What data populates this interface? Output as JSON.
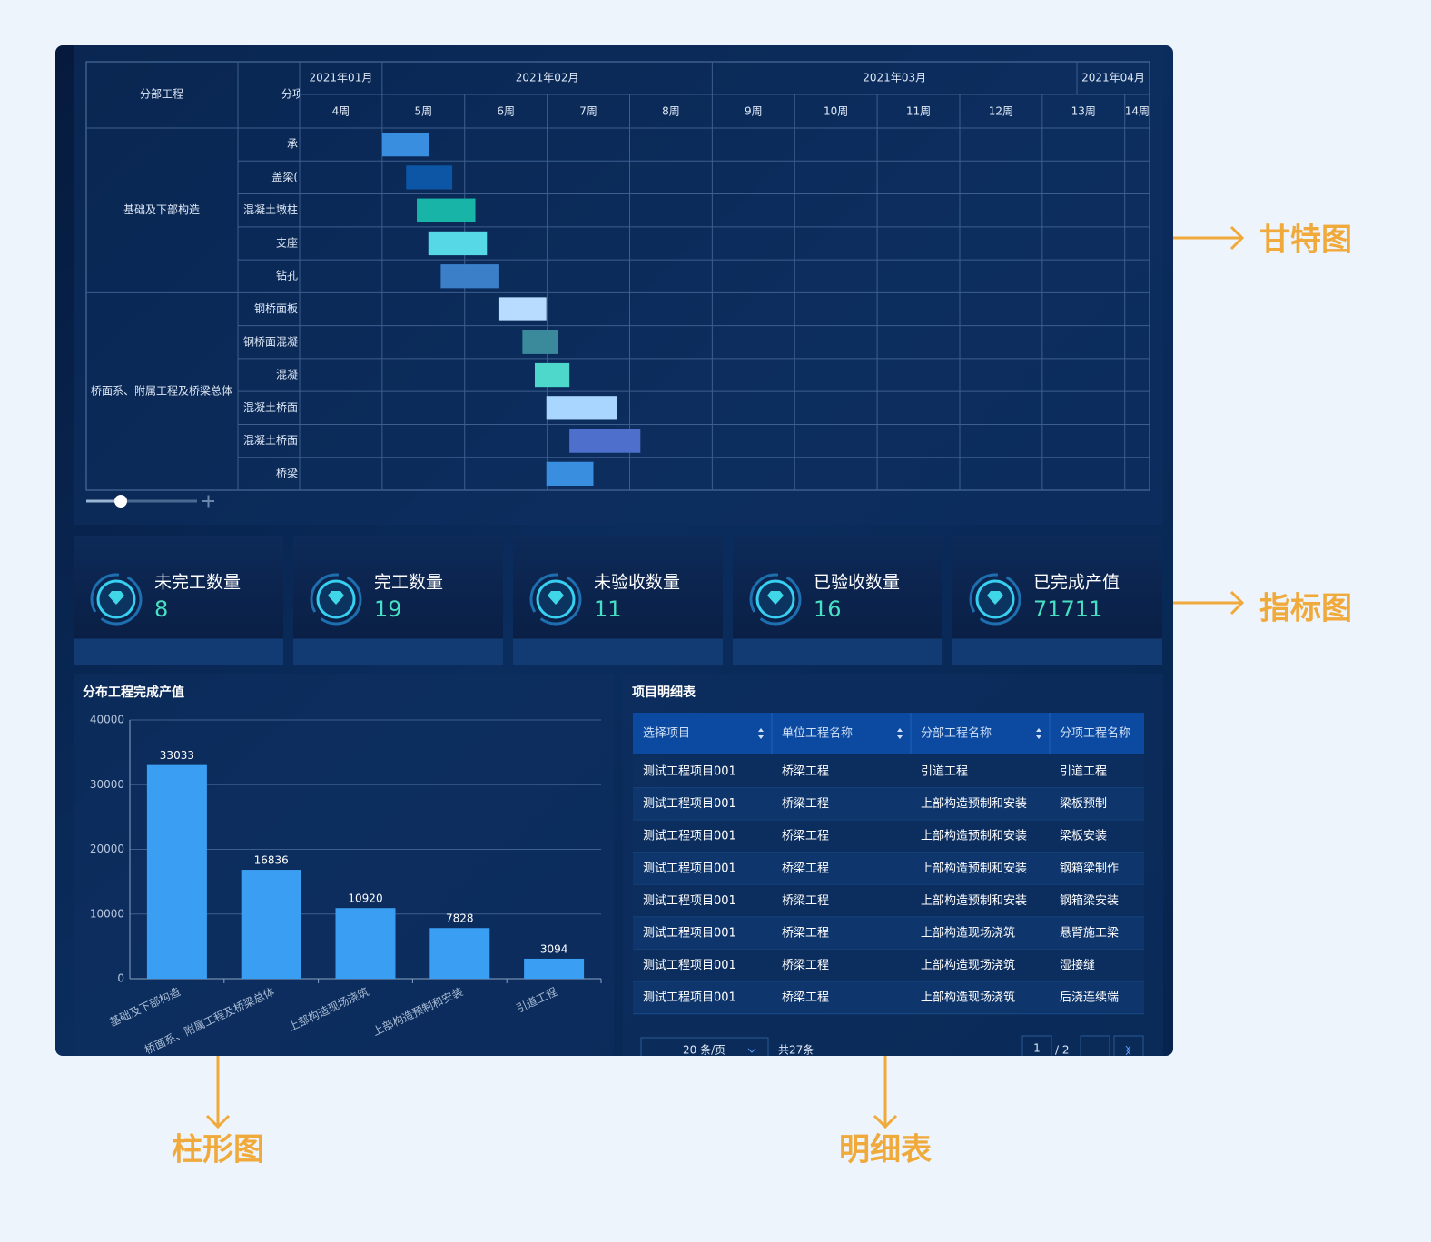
{
  "chart_data": [
    {
      "type": "gantt",
      "headers": [
        "分部工程",
        "分项"
      ],
      "months": [
        {
          "label": "2021年01月",
          "start": 4,
          "end": 5
        },
        {
          "label": "2021年02月",
          "start": 5,
          "end": 9
        },
        {
          "label": "2021年03月",
          "start": 9,
          "end": 13.42
        },
        {
          "label": "2021年04月",
          "start": 13.42,
          "end": 14.3
        }
      ],
      "categories": [
        "4周",
        "5周",
        "6周",
        "7周",
        "8周",
        "9周",
        "10周",
        "11周",
        "12周",
        "13周",
        "14周"
      ],
      "xlim": [
        4,
        14.3
      ],
      "groups": [
        {
          "label": "基础及下部构造",
          "items": [
            {
              "name": "承",
              "start": 5.0,
              "end": 5.57,
              "color": "#3a8ee0"
            },
            {
              "name": "盖梁(",
              "start": 5.29,
              "end": 5.85,
              "color": "#0d56a6"
            },
            {
              "name": "混凝土墩柱",
              "start": 5.42,
              "end": 6.13,
              "color": "#18b4a8"
            },
            {
              "name": "支座",
              "start": 5.56,
              "end": 6.27,
              "color": "#56d8e6"
            },
            {
              "name": "钻孔",
              "start": 5.71,
              "end": 6.42,
              "color": "#3b7fc9"
            }
          ]
        },
        {
          "label": "桥面系、附属工程及桥梁总体",
          "items": [
            {
              "name": "钢桥面板",
              "start": 6.42,
              "end": 6.99,
              "color": "#b8dcff"
            },
            {
              "name": "钢桥面混凝",
              "start": 6.7,
              "end": 7.13,
              "color": "#3a8a9c"
            },
            {
              "name": "混凝",
              "start": 6.85,
              "end": 7.27,
              "color": "#4ed8cc"
            },
            {
              "name": "混凝土桥面",
              "start": 6.99,
              "end": 7.85,
              "color": "#a9d6ff"
            },
            {
              "name": "混凝土桥面",
              "start": 7.27,
              "end": 8.13,
              "color": "#4e70cc"
            },
            {
              "name": "桥梁",
              "start": 6.99,
              "end": 7.56,
              "color": "#3a8ee0"
            }
          ]
        }
      ]
    },
    {
      "type": "bar",
      "title": "分布工程完成产值",
      "categories": [
        "基础及下部构造",
        "桥面系、附属工程及桥梁总体",
        "上部构造现场浇筑",
        "上部构造预制和安装",
        "引道工程"
      ],
      "values": [
        33033,
        16836,
        10920,
        7828,
        3094
      ],
      "color": "#3a9ef2",
      "ylim": [
        0,
        40000
      ],
      "yticks": [
        0,
        10000,
        20000,
        30000,
        40000
      ],
      "grid": true
    }
  ],
  "kpis": [
    {
      "label": "未完工数量",
      "value": 8
    },
    {
      "label": "完工数量",
      "value": 19
    },
    {
      "label": "未验收数量",
      "value": 11
    },
    {
      "label": "已验收数量",
      "value": 16
    },
    {
      "label": "已完成产值",
      "value": 71711
    }
  ],
  "table": {
    "title": "项目明细表",
    "columns": [
      "选择项目",
      "单位工程名称",
      "分部工程名称",
      "分项工程名称"
    ],
    "rows": [
      [
        "测试工程项目001",
        "桥梁工程",
        "引道工程",
        "引道工程"
      ],
      [
        "测试工程项目001",
        "桥梁工程",
        "上部构造预制和安装",
        "梁板预制"
      ],
      [
        "测试工程项目001",
        "桥梁工程",
        "上部构造预制和安装",
        "梁板安装"
      ],
      [
        "测试工程项目001",
        "桥梁工程",
        "上部构造预制和安装",
        "钢箱梁制作"
      ],
      [
        "测试工程项目001",
        "桥梁工程",
        "上部构造预制和安装",
        "钢箱梁安装"
      ],
      [
        "测试工程项目001",
        "桥梁工程",
        "上部构造现场浇筑",
        "悬臂施工梁"
      ],
      [
        "测试工程项目001",
        "桥梁工程",
        "上部构造现场浇筑",
        "湿接缝"
      ],
      [
        "测试工程项目001",
        "桥梁工程",
        "上部构造现场浇筑",
        "后浇连续端"
      ]
    ],
    "page_size": "20 条/页",
    "total": "共27条",
    "page": "1",
    "pages": "/ 2"
  },
  "annotations": [
    "甘特图",
    "指标图",
    "柱形图",
    "明细表"
  ]
}
